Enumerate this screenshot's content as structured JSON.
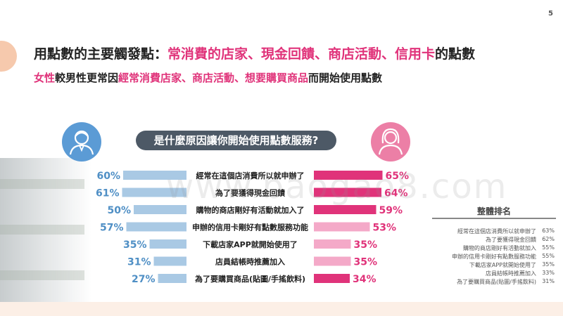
{
  "page_number": "5",
  "headline": {
    "prefix": "用點數的主要觸發點：",
    "highlight": "常消費的店家、現金回饋、商店活動、信用卡",
    "suffix": "的點數"
  },
  "subheadline": {
    "part1": "女性",
    "part2": "較男性更常因",
    "part3": "經常消費店家、商店活動、想要購買商品",
    "part4": "而開始使用點數"
  },
  "question": "是什麼原因讓你開始使用點數服務?",
  "watermark": "www.baogao8.com",
  "icons": {
    "male": "male-user-icon",
    "female": "female-user-icon"
  },
  "colors": {
    "male_bar": "#a9c9e4",
    "male_text": "#4f8fc5",
    "female_dark": "#e0337a",
    "female_light": "#f4a9c8",
    "accent": "#e0337a"
  },
  "chart_data": {
    "type": "bar",
    "orientation": "horizontal-butterfly",
    "categories": [
      "經常在這個店消費所以就申辦了",
      "為了要獲得現金回饋",
      "購物的商店剛好有活動就加入了",
      "申辦的信用卡剛好有點數服務功能",
      "下載店家APP就開始使用了",
      "店員結帳時推薦加入",
      "為了要購買商品(貼圖/手搖飲料)"
    ],
    "series": [
      {
        "name": "",
        "side": "left",
        "values": [
          60,
          61,
          50,
          57,
          35,
          31,
          27
        ]
      },
      {
        "name": "",
        "side": "right",
        "values": [
          65,
          64,
          59,
          53,
          35,
          35,
          34
        ]
      }
    ],
    "labels_left": [
      "60%",
      "61%",
      "50%",
      "57%",
      "35%",
      "31%",
      "27%"
    ],
    "labels_right": [
      "65%",
      "64%",
      "59%",
      "53%",
      "35%",
      "35%",
      "34%"
    ],
    "female_highlight": [
      true,
      true,
      true,
      false,
      false,
      false,
      true
    ],
    "xlim": [
      0,
      70
    ]
  },
  "overall_ranking": {
    "title": "整體排名",
    "items": [
      {
        "label": "經常在這個店消費所以就申辦了",
        "value": "63%"
      },
      {
        "label": "為了要獲得現金回饋",
        "value": "62%"
      },
      {
        "label": "購物的商店剛好有活動就加入",
        "value": "55%"
      },
      {
        "label": "申辦的信用卡剛好有點數服務功能",
        "value": "55%"
      },
      {
        "label": "下載店家APP就開始使用了",
        "value": "35%"
      },
      {
        "label": "店員結帳時推薦加入",
        "value": "33%"
      },
      {
        "label": "為了要購買商品(貼圖/手搖飲料)",
        "value": "31%"
      }
    ]
  }
}
